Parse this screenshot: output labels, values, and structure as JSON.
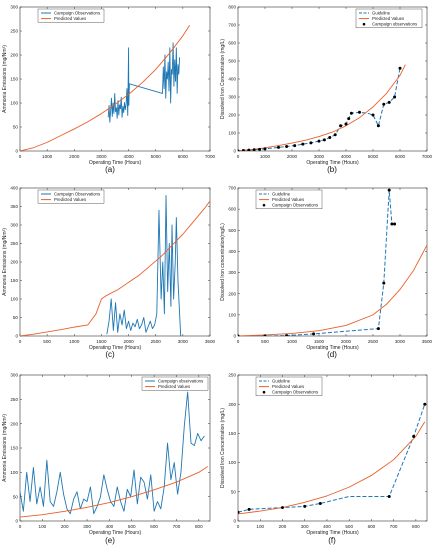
{
  "figure": {
    "panel_labels": [
      "(a)",
      "(b)",
      "(c)",
      "(d)",
      "(e)",
      "(f)"
    ]
  },
  "chart_data": [
    {
      "id": "a",
      "type": "line",
      "label": "(a)",
      "xlabel": "Operating Time (Hours)",
      "ylabel": "Ammonia Emissions (mg/Nm³)",
      "xlim": [
        0,
        7000
      ],
      "ylim": [
        0,
        300
      ],
      "xticks": [
        0,
        1000,
        2000,
        3000,
        4000,
        5000,
        6000,
        7000
      ],
      "yticks": [
        0,
        50,
        100,
        150,
        200,
        250,
        300
      ],
      "legend_pos": "top-left",
      "grid": false,
      "series": [
        {
          "name": "Campaign Observations",
          "color": "#1f77b4",
          "style": "solid",
          "x": [
            3250,
            3280,
            3310,
            3340,
            3370,
            3400,
            3430,
            3460,
            3490,
            3520,
            3550,
            3580,
            3610,
            3640,
            3670,
            3700,
            3730,
            3760,
            3790,
            3820,
            3850,
            3880,
            3910,
            3940,
            3970,
            4000,
            4010,
            4030,
            5250,
            5280,
            5310,
            5340,
            5370,
            5400,
            5430,
            5460,
            5490,
            5520,
            5550,
            5580,
            5610,
            5640,
            5670,
            5700,
            5730,
            5760,
            5790,
            5820,
            5850,
            5880
          ],
          "y": [
            70,
            95,
            60,
            85,
            110,
            72,
            100,
            78,
            120,
            82,
            90,
            68,
            105,
            75,
            96,
            88,
            112,
            70,
            93,
            80,
            101,
            86,
            98,
            130,
            74,
            215,
            95,
            140,
            120,
            175,
            130,
            200,
            110,
            165,
            150,
            185,
            125,
            215,
            100,
            170,
            160,
            225,
            135,
            190,
            145,
            215,
            120,
            180,
            160,
            195
          ]
        },
        {
          "name": "Predicted Values",
          "color": "#e8602c",
          "style": "solid",
          "x": [
            0,
            500,
            1000,
            1500,
            2000,
            2500,
            3000,
            3500,
            4000,
            4500,
            5000,
            5500,
            6000,
            6250
          ],
          "y": [
            0,
            7,
            18,
            32,
            46,
            61,
            78,
            97,
            118,
            142,
            170,
            203,
            240,
            262
          ]
        }
      ]
    },
    {
      "id": "b",
      "type": "line",
      "label": "(b)",
      "xlabel": "Operating Time (Hours)",
      "ylabel": "Dissolved Iron Concentration (mg/L)",
      "xlim": [
        0,
        7000
      ],
      "ylim": [
        0,
        800
      ],
      "xticks": [
        0,
        1000,
        2000,
        3000,
        4000,
        5000,
        6000,
        7000
      ],
      "yticks": [
        0,
        100,
        200,
        300,
        400,
        500,
        600,
        700,
        800
      ],
      "legend_pos": "top-right",
      "grid": false,
      "series": [
        {
          "name": "Guideline",
          "color": "#1f77b4",
          "style": "dashed",
          "x": [
            0,
            200,
            400,
            600,
            800,
            1000,
            1200,
            1500,
            1800,
            2100,
            2400,
            2700,
            3000,
            3200,
            3400,
            3600,
            3800,
            4000,
            4100,
            4200,
            4500,
            4800,
            5000,
            5200,
            5400,
            5600,
            5800,
            6000
          ],
          "y": [
            0,
            3,
            5,
            7,
            9,
            12,
            15,
            20,
            25,
            30,
            38,
            45,
            55,
            62,
            75,
            90,
            140,
            150,
            180,
            210,
            215,
            210,
            200,
            140,
            260,
            270,
            300,
            460
          ]
        },
        {
          "name": "Predicted Values",
          "color": "#e8602c",
          "style": "solid",
          "x": [
            0,
            500,
            1000,
            1500,
            2000,
            2500,
            3000,
            3500,
            4000,
            4500,
            5000,
            5500,
            6000,
            6200
          ],
          "y": [
            0,
            8,
            18,
            30,
            44,
            60,
            80,
            105,
            140,
            185,
            245,
            320,
            420,
            480
          ]
        },
        {
          "name": "Campaign observations",
          "color": "#000000",
          "style": "markers",
          "x": [
            0,
            200,
            400,
            600,
            800,
            1000,
            1500,
            1800,
            2100,
            2400,
            2700,
            3000,
            3200,
            3400,
            3600,
            3800,
            4000,
            4100,
            4200,
            4500,
            5000,
            5200,
            5400,
            5600,
            5800,
            6000
          ],
          "y": [
            0,
            3,
            5,
            7,
            9,
            12,
            20,
            25,
            30,
            38,
            45,
            55,
            62,
            75,
            90,
            140,
            150,
            180,
            210,
            215,
            200,
            140,
            260,
            270,
            300,
            460
          ]
        }
      ]
    },
    {
      "id": "c",
      "type": "line",
      "label": "(c)",
      "xlabel": "Operating Time (Hours)",
      "ylabel": "Ammonia Emissions (mg/Nm³)",
      "xlim": [
        0,
        3500
      ],
      "ylim": [
        0,
        400
      ],
      "xticks": [
        0,
        500,
        1000,
        1500,
        2000,
        2500,
        3000,
        3500
      ],
      "yticks": [
        0,
        50,
        100,
        150,
        200,
        250,
        300,
        350,
        400
      ],
      "legend_pos": "top-left",
      "grid": false,
      "series": [
        {
          "name": "Campaign Observations",
          "color": "#1f77b4",
          "style": "solid",
          "x": [
            1600,
            1640,
            1680,
            1720,
            1760,
            1800,
            1840,
            1880,
            1920,
            1960,
            2000,
            2040,
            2080,
            2120,
            2160,
            2200,
            2240,
            2280,
            2320,
            2360,
            2400,
            2440,
            2480,
            2520,
            2560,
            2600,
            2630,
            2660,
            2690,
            2720,
            2750,
            2780,
            2800,
            2830,
            2860,
            2880,
            2910,
            2940,
            2960
          ],
          "y": [
            5,
            40,
            100,
            15,
            90,
            10,
            60,
            30,
            70,
            20,
            40,
            15,
            35,
            25,
            45,
            20,
            30,
            50,
            10,
            25,
            40,
            20,
            30,
            60,
            340,
            100,
            200,
            60,
            380,
            120,
            250,
            80,
            300,
            100,
            200,
            320,
            150,
            60,
            0
          ]
        },
        {
          "name": "Predicted Values",
          "color": "#e8602c",
          "style": "solid",
          "x": [
            0,
            250,
            500,
            750,
            1000,
            1250,
            1400,
            1500,
            1600,
            1800,
            2000,
            2200,
            2400,
            2600,
            2800,
            3000,
            3200,
            3400,
            3500
          ],
          "y": [
            0,
            5,
            11,
            17,
            24,
            30,
            60,
            100,
            110,
            125,
            145,
            165,
            190,
            215,
            245,
            275,
            310,
            345,
            365
          ]
        }
      ]
    },
    {
      "id": "d",
      "type": "line",
      "label": "(d)",
      "xlabel": "Operating Time (Hours)",
      "ylabel": "Dissolved Iron concentration(mg/L)",
      "xlim": [
        0,
        3500
      ],
      "ylim": [
        0,
        700
      ],
      "xticks": [
        0,
        500,
        1000,
        1500,
        2000,
        2500,
        3000,
        3500
      ],
      "yticks": [
        0,
        100,
        200,
        300,
        400,
        500,
        600,
        700
      ],
      "legend_pos": "top-left",
      "grid": false,
      "series": [
        {
          "name": "Guideline",
          "color": "#1f77b4",
          "style": "dashed",
          "x": [
            0,
            500,
            900,
            1400,
            2600,
            2700,
            2800,
            2850,
            2900
          ],
          "y": [
            0,
            0,
            2,
            10,
            35,
            250,
            690,
            530,
            530
          ]
        },
        {
          "name": "Predicted Values",
          "color": "#e8602c",
          "style": "solid",
          "x": [
            0,
            500,
            1000,
            1500,
            2000,
            2500,
            2750,
            3000,
            3250,
            3500
          ],
          "y": [
            0,
            5,
            12,
            25,
            50,
            100,
            150,
            220,
            310,
            430
          ]
        },
        {
          "name": "Campaign Observations",
          "color": "#000000",
          "style": "markers",
          "x": [
            0,
            500,
            900,
            1400,
            2600,
            2700,
            2800,
            2850,
            2900
          ],
          "y": [
            0,
            0,
            2,
            10,
            35,
            250,
            690,
            530,
            530
          ]
        }
      ]
    },
    {
      "id": "e",
      "type": "line",
      "label": "(e)",
      "xlabel": "Operating Time (Hours)",
      "ylabel": "Ammonia Emissions (mg/Nm³)",
      "xlim": [
        0,
        850
      ],
      "ylim": [
        0,
        300
      ],
      "xticks": [
        0,
        100,
        200,
        300,
        400,
        500,
        600,
        700,
        800
      ],
      "yticks": [
        0,
        50,
        100,
        150,
        200,
        250,
        300
      ],
      "legend_pos": "top-right",
      "grid": false,
      "series": [
        {
          "name": "Campaign observations",
          "color": "#1f77b4",
          "style": "solid",
          "x": [
            0,
            15,
            30,
            45,
            60,
            75,
            90,
            105,
            120,
            135,
            150,
            165,
            180,
            195,
            210,
            225,
            240,
            255,
            270,
            285,
            300,
            315,
            330,
            345,
            360,
            375,
            390,
            405,
            420,
            435,
            450,
            465,
            480,
            495,
            510,
            525,
            540,
            555,
            570,
            585,
            600,
            615,
            630,
            645,
            660,
            675,
            690,
            705,
            720,
            735,
            750,
            765,
            780,
            795,
            810,
            825
          ],
          "y": [
            60,
            20,
            100,
            40,
            110,
            35,
            70,
            30,
            125,
            40,
            30,
            60,
            100,
            55,
            25,
            15,
            45,
            60,
            25,
            45,
            40,
            70,
            15,
            30,
            50,
            95,
            65,
            40,
            30,
            70,
            40,
            20,
            65,
            50,
            105,
            35,
            90,
            80,
            45,
            95,
            20,
            40,
            25,
            70,
            160,
            85,
            120,
            55,
            100,
            195,
            265,
            160,
            155,
            180,
            165,
            175
          ]
        },
        {
          "name": "Predicted Values",
          "color": "#e8602c",
          "style": "solid",
          "x": [
            0,
            100,
            200,
            300,
            400,
            500,
            600,
            700,
            800,
            840
          ],
          "y": [
            8,
            13,
            20,
            28,
            38,
            50,
            64,
            80,
            100,
            112
          ]
        }
      ]
    },
    {
      "id": "f",
      "type": "line",
      "label": "(f)",
      "xlabel": "Operating Time (Hours)",
      "ylabel": "Dissolved Iron Concentration (mg/L)",
      "xlim": [
        0,
        850
      ],
      "ylim": [
        0,
        250
      ],
      "xticks": [
        0,
        100,
        200,
        300,
        400,
        500,
        600,
        700,
        800
      ],
      "yticks": [
        0,
        50,
        100,
        150,
        200,
        250
      ],
      "legend_pos": "top-left",
      "grid": false,
      "series": [
        {
          "name": "Guideline",
          "color": "#1f77b4",
          "style": "dashed",
          "x": [
            0,
            50,
            200,
            300,
            370,
            500,
            680,
            790,
            840
          ],
          "y": [
            15,
            20,
            23,
            25,
            30,
            42,
            42,
            145,
            200
          ]
        },
        {
          "name": "Predicted Values",
          "color": "#e8602c",
          "style": "solid",
          "x": [
            0,
            100,
            200,
            300,
            400,
            500,
            600,
            700,
            800,
            840
          ],
          "y": [
            12,
            17,
            23,
            32,
            43,
            58,
            78,
            105,
            145,
            170
          ]
        },
        {
          "name": "Campaign Observations",
          "color": "#000000",
          "style": "markers",
          "x": [
            0,
            50,
            200,
            300,
            370,
            680,
            790,
            840
          ],
          "y": [
            15,
            20,
            23,
            25,
            30,
            42,
            145,
            200
          ]
        }
      ]
    }
  ]
}
